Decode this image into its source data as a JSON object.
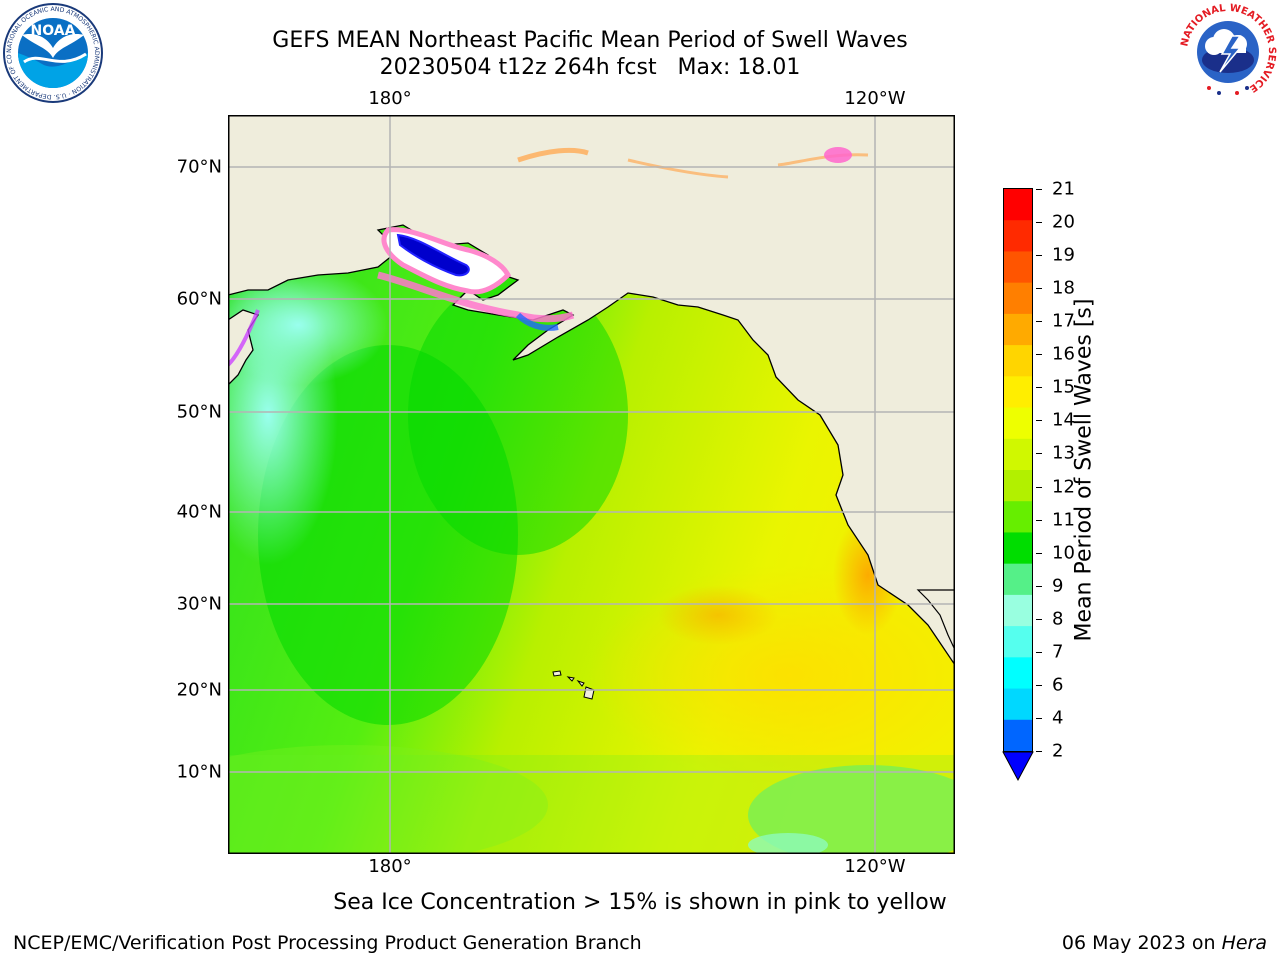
{
  "title": {
    "line1": "GEFS MEAN Northeast Pacific Mean Period of Swell Waves",
    "line2": "20230504 t12z 264h fcst   Max: 18.01"
  },
  "logos": {
    "noaa_text": "NOAA",
    "noaa_ring": "NATIONAL OCEANIC AND ATMOSPHERIC ADMINISTRATION · U.S. DEPARTMENT OF COMMERCE",
    "nws_ring": "NATIONAL WEATHER SERVICE"
  },
  "map": {
    "lon_labels_top": [
      "180°",
      "120°W"
    ],
    "lon_labels_bottom": [
      "180°",
      "120°W"
    ],
    "lat_labels": [
      "70°N",
      "60°N",
      "50°N",
      "40°N",
      "30°N",
      "20°N",
      "10°N"
    ],
    "land_color": "#efeddc",
    "grid_color": "#b4b4b4",
    "coast_color": "#000000"
  },
  "colorbar": {
    "title": "Mean Period of Swell Waves [s]",
    "ticks": [
      "21",
      "20",
      "19",
      "18",
      "17",
      "16",
      "15",
      "14",
      "13",
      "12",
      "11",
      "10",
      "9",
      "8",
      "7",
      "6",
      "4",
      "2"
    ],
    "colors": [
      "#ff0000",
      "#ff2a00",
      "#ff5500",
      "#ff7f00",
      "#ffaa00",
      "#ffd500",
      "#ffee00",
      "#eeff00",
      "#d0f800",
      "#b2f000",
      "#66ee00",
      "#00dd00",
      "#55f088",
      "#99ffe0",
      "#55ffee",
      "#00ffff",
      "#00d8ff",
      "#0066ff"
    ],
    "under_color": "#0000ff"
  },
  "notes": {
    "sea_ice": "Sea Ice Concentration > 15% is shown in pink to yellow"
  },
  "footer": {
    "left": "NCEP/EMC/Verification Post Processing Product Generation Branch",
    "date": "06 May 2023 on ",
    "machine": "Hera"
  }
}
